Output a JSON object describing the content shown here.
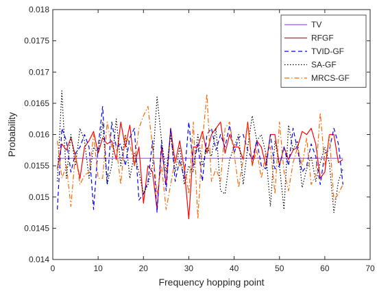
{
  "chart_data": {
    "type": "line",
    "title": "",
    "xlabel": "Frequency hopping point",
    "ylabel": "Probability",
    "xlim": [
      0,
      70
    ],
    "ylim": [
      0.014,
      0.018
    ],
    "xticks": [
      0,
      10,
      20,
      30,
      40,
      50,
      60,
      70
    ],
    "xtick_labels": [
      "0",
      "10",
      "20",
      "30",
      "40",
      "50",
      "60",
      "70"
    ],
    "yticks": [
      0.014,
      0.0145,
      0.015,
      0.0155,
      0.016,
      0.0165,
      0.017,
      0.0175,
      0.018
    ],
    "ytick_labels": [
      "0.014",
      "0.0145",
      "0.015",
      "0.0155",
      "0.016",
      "0.0165",
      "0.017",
      "0.0175",
      "0.018"
    ],
    "grid": false,
    "legend_position": "top-right",
    "x": [
      1,
      2,
      3,
      4,
      5,
      6,
      7,
      8,
      9,
      10,
      11,
      12,
      13,
      14,
      15,
      16,
      17,
      18,
      19,
      20,
      21,
      22,
      23,
      24,
      25,
      26,
      27,
      28,
      29,
      30,
      31,
      32,
      33,
      34,
      35,
      36,
      37,
      38,
      39,
      40,
      41,
      42,
      43,
      44,
      45,
      46,
      47,
      48,
      49,
      50,
      51,
      52,
      53,
      54,
      55,
      56,
      57,
      58,
      59,
      60,
      61,
      62,
      63,
      64
    ],
    "series": [
      {
        "name": "TV",
        "color": "#a64dff",
        "dash": "solid",
        "values": [
          0.01562,
          0.01562,
          0.01562,
          0.01562,
          0.01562,
          0.01562,
          0.01562,
          0.01562,
          0.01562,
          0.01562,
          0.01562,
          0.01562,
          0.01562,
          0.01562,
          0.01562,
          0.01562,
          0.01562,
          0.01562,
          0.01562,
          0.01562,
          0.01562,
          0.01562,
          0.01562,
          0.01562,
          0.01562,
          0.01562,
          0.01562,
          0.01562,
          0.01562,
          0.01562,
          0.01562,
          0.01562,
          0.01562,
          0.01562,
          0.01562,
          0.01562,
          0.01562,
          0.01562,
          0.01562,
          0.01562,
          0.01562,
          0.01562,
          0.01562,
          0.01562,
          0.01562,
          0.01562,
          0.01562,
          0.01562,
          0.01562,
          0.01562,
          0.01562,
          0.01562,
          0.01562,
          0.01562,
          0.01562,
          0.01562,
          0.01562,
          0.01562,
          0.01562,
          0.01562,
          0.01562,
          0.01562,
          0.01562,
          0.01562
        ]
      },
      {
        "name": "RFGF",
        "color": "#ff0000",
        "dash": "solid",
        "values": [
          0.01545,
          0.01585,
          0.01575,
          0.01595,
          0.01565,
          0.0153,
          0.0158,
          0.0159,
          0.01605,
          0.0157,
          0.01595,
          0.01585,
          0.0159,
          0.0156,
          0.0162,
          0.0158,
          0.01615,
          0.0155,
          0.0158,
          0.0149,
          0.0155,
          0.0154,
          0.0148,
          0.0158,
          0.0152,
          0.0161,
          0.01555,
          0.0159,
          0.01545,
          0.01465,
          0.0158,
          0.0158,
          0.01605,
          0.0157,
          0.016,
          0.0161,
          0.0162,
          0.0157,
          0.016,
          0.0158,
          0.0158,
          0.0156,
          0.0162,
          0.0155,
          0.0159,
          0.0158,
          0.0155,
          0.016,
          0.016,
          0.0155,
          0.0158,
          0.0156,
          0.01575,
          0.0158,
          0.01605,
          0.016,
          0.0161,
          0.01585,
          0.0153,
          0.0154,
          0.016,
          0.016,
          0.01555,
          0.0156
        ]
      },
      {
        "name": "TVID-GF",
        "color": "#0000ff",
        "dash": "dashed",
        "values": [
          0.0148,
          0.0161,
          0.0159,
          0.0154,
          0.0157,
          0.0158,
          0.016,
          0.0158,
          0.0148,
          0.0158,
          0.01645,
          0.0152,
          0.0162,
          0.0158,
          0.01585,
          0.0155,
          0.01595,
          0.0161,
          0.01495,
          0.01505,
          0.01525,
          0.0159,
          0.01475,
          0.0159,
          0.0151,
          0.0161,
          0.01525,
          0.0156,
          0.0153,
          0.0162,
          0.0155,
          0.01585,
          0.01525,
          0.016,
          0.0161,
          0.01575,
          0.016,
          0.0158,
          0.01615,
          0.0157,
          0.01595,
          0.016,
          0.01575,
          0.0156,
          0.0159,
          0.0155,
          0.01545,
          0.016,
          0.01545,
          0.0155,
          0.0158,
          0.0155,
          0.0161,
          0.01575,
          0.0154,
          0.0155,
          0.01585,
          0.01565,
          0.0152,
          0.0157,
          0.01575,
          0.0161,
          0.01585,
          0.0152
        ]
      },
      {
        "name": "SA-GF",
        "color": "#000000",
        "dash": "dotted",
        "values": [
          0.01525,
          0.0167,
          0.0153,
          0.016,
          0.0155,
          0.0161,
          0.0159,
          0.0153,
          0.0158,
          0.0157,
          0.0162,
          0.0152,
          0.0155,
          0.01625,
          0.0155,
          0.016,
          0.0153,
          0.0157,
          0.0154,
          0.01505,
          0.0152,
          0.0155,
          0.0166,
          0.0159,
          0.0154,
          0.016,
          0.0154,
          0.0158,
          0.0152,
          0.0155,
          0.0154,
          0.016,
          0.0155,
          0.0158,
          0.01565,
          0.0161,
          0.0151,
          0.01505,
          0.0156,
          0.0158,
          0.016,
          0.0152,
          0.0158,
          0.0163,
          0.0159,
          0.016,
          0.0157,
          0.01485,
          0.0159,
          0.0155,
          0.0148,
          0.01615,
          0.01575,
          0.0159,
          0.01515,
          0.01545,
          0.01565,
          0.01525,
          0.01555,
          0.0158,
          0.01555,
          0.01475,
          0.01525,
          0.01545
        ]
      },
      {
        "name": "MRCS-GF",
        "color": "#ff6600",
        "dash": "dashdot",
        "values": [
          0.0159,
          0.0153,
          0.0155,
          0.01485,
          0.0157,
          0.0152,
          0.01535,
          0.0154,
          0.016,
          0.0153,
          0.0153,
          0.0162,
          0.0158,
          0.0158,
          0.0152,
          0.016,
          0.01585,
          0.0155,
          0.0161,
          0.0163,
          0.01645,
          0.0158,
          0.01505,
          0.0155,
          0.0148,
          0.0152,
          0.0156,
          0.0155,
          0.01555,
          0.01505,
          0.0162,
          0.01465,
          0.0159,
          0.01665,
          0.01525,
          0.01545,
          0.01525,
          0.0161,
          0.0162,
          0.0157,
          0.01515,
          0.0156,
          0.01615,
          0.0155,
          0.01575,
          0.0153,
          0.0157,
          0.0158,
          0.01505,
          0.0162,
          0.0154,
          0.0151,
          0.01555,
          0.0158,
          0.0155,
          0.01595,
          0.0152,
          0.01535,
          0.01635,
          0.0155,
          0.016,
          0.01495,
          0.01505,
          0.0152
        ]
      }
    ]
  }
}
